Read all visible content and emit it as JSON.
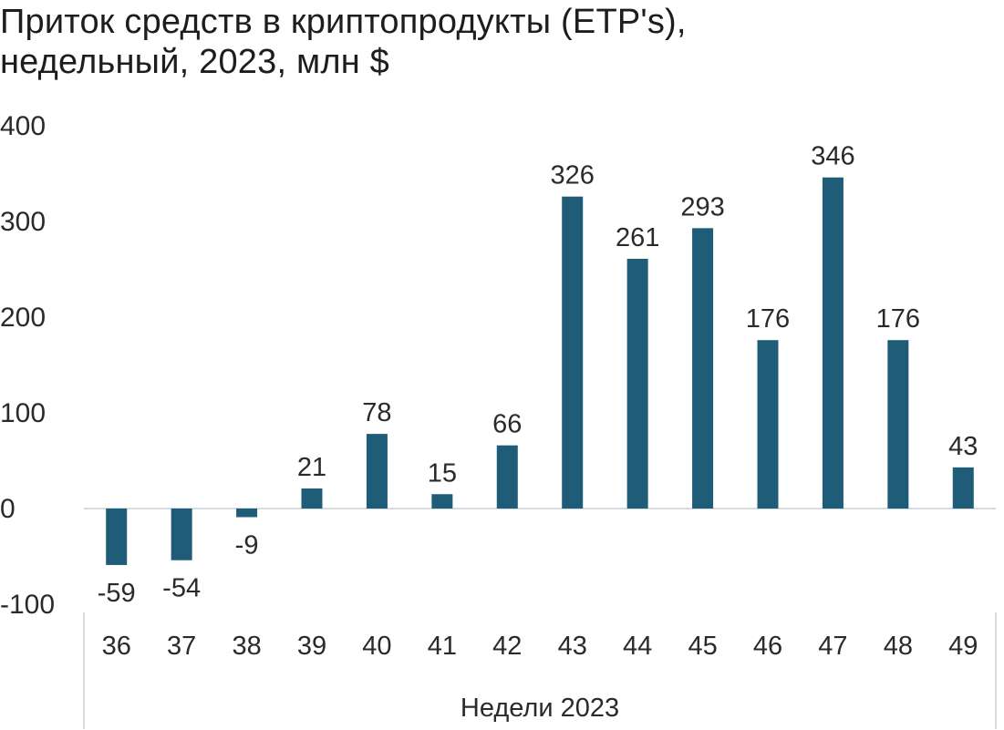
{
  "chart_data": {
    "type": "bar",
    "title_line1": "Приток средств в криптопродукты (ETP's),",
    "title_line2": "недельный, 2023, млн $",
    "xlabel": "Недели 2023",
    "ylabel": "",
    "ylim": [
      -100,
      400
    ],
    "yticks": [
      400,
      300,
      200,
      100,
      0,
      -100
    ],
    "ytick_labels": [
      "400",
      "300",
      "200",
      "100",
      "0",
      "-100"
    ],
    "categories": [
      "36",
      "37",
      "38",
      "39",
      "40",
      "41",
      "42",
      "43",
      "44",
      "45",
      "46",
      "47",
      "48",
      "49"
    ],
    "values": [
      -59,
      -54,
      -9,
      21,
      78,
      15,
      66,
      326,
      261,
      293,
      176,
      346,
      176,
      43
    ],
    "value_labels": [
      "-59",
      "-54",
      "-9",
      "21",
      "78",
      "15",
      "66",
      "326",
      "261",
      "293",
      "176",
      "346",
      "176",
      "43"
    ],
    "bar_color": "#1f5c78",
    "axis_color": "#d6dde2",
    "grid": false,
    "legend": "none"
  }
}
